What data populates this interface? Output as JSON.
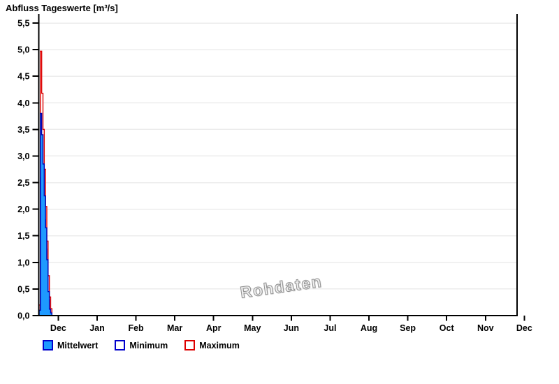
{
  "title": "Abfluss Tageswerte [m³/s]",
  "watermark": "Rohdaten",
  "colors": {
    "mean_fill": "#1E9AFF",
    "blue_border": "#0000BB",
    "max_red": "#DD0000",
    "grid": "#ECECEC",
    "axis": "#000000",
    "watermark_gray": "#949494",
    "background": "#FFFFFF"
  },
  "legend": [
    {
      "label": "Mittelwert",
      "fill": "#1E9AFF",
      "border": "#0000CC"
    },
    {
      "label": "Minimum",
      "fill": "#FFFFFF",
      "border": "#0000CC"
    },
    {
      "label": "Maximum",
      "fill": "#FFFFFF",
      "border": "#DD0000"
    }
  ],
  "chart_data": {
    "type": "area",
    "title": "Abfluss Tageswerte [m³/s]",
    "xlabel": "",
    "ylabel": "",
    "ylim": [
      0,
      5.5
    ],
    "y_tick_step": 0.5,
    "y_tick_labels": [
      "0,0",
      "0,5",
      "1,0",
      "1,5",
      "2,0",
      "2,5",
      "3,0",
      "3,5",
      "4,0",
      "4,5",
      "5,0",
      "5,5"
    ],
    "x_tick_labels": [
      "Dec",
      "Jan",
      "Feb",
      "Mar",
      "Apr",
      "May",
      "Jun",
      "Jul",
      "Aug",
      "Sep",
      "Oct",
      "Nov",
      "Dec"
    ],
    "grid": "horizontal-only",
    "legend_position": "bottom-left",
    "event_days": [
      0,
      1,
      2,
      3,
      4,
      5,
      6,
      7,
      8,
      9
    ],
    "series": [
      {
        "name": "Mittelwert",
        "fill": "#1E9AFF",
        "stroke": "#0000B0",
        "values": [
          0.1,
          3.8,
          3.4,
          2.85,
          2.25,
          1.65,
          1.05,
          0.45,
          0.12,
          0.05
        ]
      },
      {
        "name": "Minimum",
        "fill": "#FFFFFF",
        "stroke": "#0000B0",
        "values": [
          0.05,
          2.6,
          2.85,
          2.35,
          1.8,
          1.25,
          0.7,
          0.3,
          0.08,
          0.03
        ]
      },
      {
        "name": "Maximum",
        "fill": "#FFFFFF",
        "stroke": "#DD0000",
        "values": [
          0.2,
          4.97,
          4.18,
          3.5,
          2.75,
          2.05,
          1.4,
          0.75,
          0.35,
          0.13
        ]
      }
    ]
  }
}
